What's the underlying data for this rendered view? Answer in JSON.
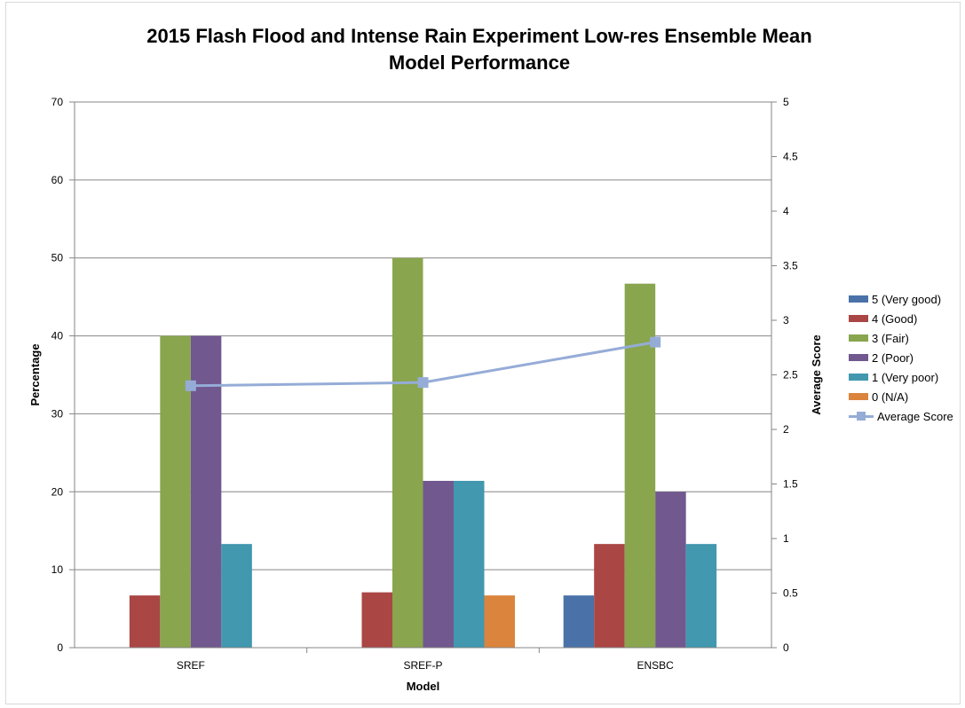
{
  "chart_data": {
    "type": "bar",
    "title_line1": "2015 Flash Flood and Intense Rain Experiment Low-res Ensemble Mean",
    "title_line2": "Model Performance",
    "xlabel": "Model",
    "ylabel": "Percentage",
    "y2label": "Average Score",
    "categories": [
      "SREF",
      "SREF-P",
      "ENSBC"
    ],
    "ylim": [
      0,
      70
    ],
    "yticks": [
      0,
      10,
      20,
      30,
      40,
      50,
      60,
      70
    ],
    "y2lim": [
      0,
      5
    ],
    "y2ticks": [
      "0",
      "0.5",
      "1",
      "1.5",
      "2",
      "2.5",
      "3",
      "3.5",
      "4",
      "4.5",
      "5"
    ],
    "grid": true,
    "legend_position": "right",
    "series": [
      {
        "name": "5 (Very good)",
        "color": "#4a72a8",
        "values": [
          0,
          0,
          6.7
        ]
      },
      {
        "name": "4 (Good)",
        "color": "#aa4644",
        "values": [
          6.7,
          7.1,
          13.3
        ]
      },
      {
        "name": "3 (Fair)",
        "color": "#89a54e",
        "values": [
          40,
          50,
          46.7
        ]
      },
      {
        "name": "2 (Poor)",
        "color": "#71588f",
        "values": [
          40,
          21.4,
          20
        ]
      },
      {
        "name": "1 (Very poor)",
        "color": "#4198af",
        "values": [
          13.3,
          21.4,
          13.3
        ]
      },
      {
        "name": "0 (N/A)",
        "color": "#db843d",
        "values": [
          0,
          6.7,
          0
        ]
      }
    ],
    "line_series": {
      "name": "Average Score",
      "color": "#95acd7",
      "values": [
        2.4,
        2.43,
        2.8
      ]
    }
  }
}
